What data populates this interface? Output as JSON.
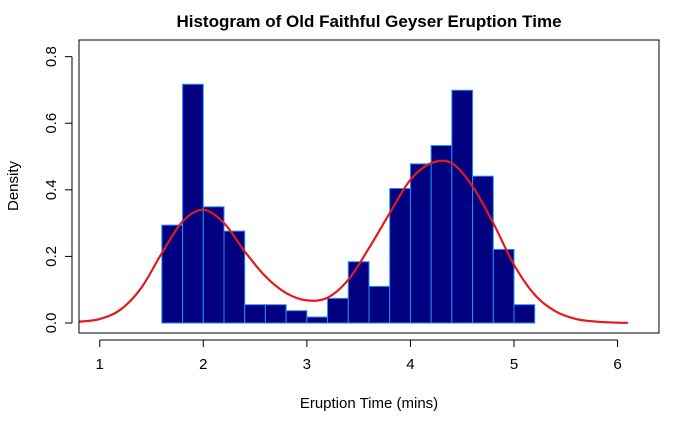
{
  "chart_data": {
    "type": "bar",
    "title": "Histogram of Old Faithful Geyser Eruption Time",
    "xlabel": "Eruption Time (mins)",
    "ylabel": "Density",
    "xlim": [
      0.8,
      6.4
    ],
    "ylim": [
      -0.03,
      0.85
    ],
    "x_ticks": [
      "1",
      "2",
      "3",
      "4",
      "5",
      "6"
    ],
    "y_ticks": [
      "0.0",
      "0.2",
      "0.4",
      "0.6",
      "0.8"
    ],
    "bin_width": 0.2,
    "bins": [
      {
        "x0": 1.6,
        "x1": 1.8,
        "density": 0.294
      },
      {
        "x0": 1.8,
        "x1": 2.0,
        "density": 0.717
      },
      {
        "x0": 2.0,
        "x1": 2.2,
        "density": 0.349
      },
      {
        "x0": 2.2,
        "x1": 2.4,
        "density": 0.276
      },
      {
        "x0": 2.4,
        "x1": 2.6,
        "density": 0.055
      },
      {
        "x0": 2.6,
        "x1": 2.8,
        "density": 0.055
      },
      {
        "x0": 2.8,
        "x1": 3.0,
        "density": 0.037
      },
      {
        "x0": 3.0,
        "x1": 3.2,
        "density": 0.018
      },
      {
        "x0": 3.2,
        "x1": 3.4,
        "density": 0.074
      },
      {
        "x0": 3.4,
        "x1": 3.6,
        "density": 0.184
      },
      {
        "x0": 3.6,
        "x1": 3.8,
        "density": 0.11
      },
      {
        "x0": 3.8,
        "x1": 4.0,
        "density": 0.404
      },
      {
        "x0": 4.0,
        "x1": 4.2,
        "density": 0.478
      },
      {
        "x0": 4.2,
        "x1": 4.4,
        "density": 0.533
      },
      {
        "x0": 4.4,
        "x1": 4.6,
        "density": 0.699
      },
      {
        "x0": 4.6,
        "x1": 4.8,
        "density": 0.441
      },
      {
        "x0": 4.8,
        "x1": 5.0,
        "density": 0.221
      },
      {
        "x0": 5.0,
        "x1": 5.2,
        "density": 0.055
      }
    ],
    "density_curve": {
      "x": [
        0.8,
        1.0,
        1.2,
        1.4,
        1.6,
        1.8,
        2.0,
        2.2,
        2.4,
        2.6,
        2.8,
        3.0,
        3.2,
        3.4,
        3.6,
        3.8,
        4.0,
        4.2,
        4.4,
        4.6,
        4.8,
        5.0,
        5.2,
        5.4,
        5.6,
        5.8,
        6.0,
        6.1
      ],
      "y": [
        0.004,
        0.012,
        0.04,
        0.105,
        0.21,
        0.305,
        0.34,
        0.3,
        0.215,
        0.14,
        0.09,
        0.068,
        0.076,
        0.13,
        0.225,
        0.33,
        0.43,
        0.48,
        0.48,
        0.41,
        0.3,
        0.175,
        0.085,
        0.035,
        0.012,
        0.004,
        0.001,
        0.0005
      ]
    },
    "bar_fill": "#000080",
    "bar_stroke": "#1e90ff",
    "curve_color": "#e31a1c",
    "grid": false,
    "legend": "none"
  }
}
